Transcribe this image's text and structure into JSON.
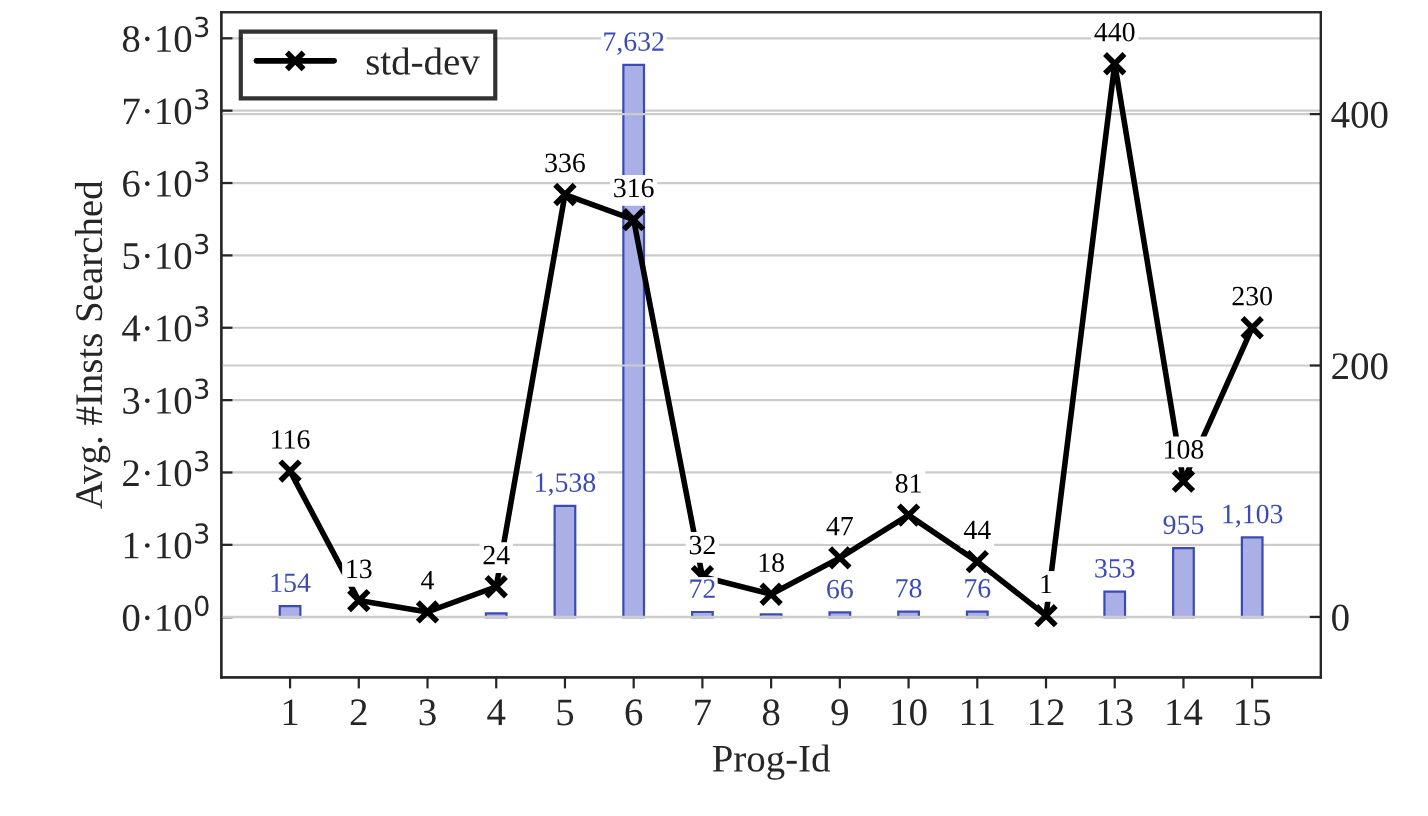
{
  "chart_data": {
    "type": "bar",
    "xlabel": "Prog-Id",
    "ylabel": "Avg. #Insts Searched",
    "categories": [
      "1",
      "2",
      "3",
      "4",
      "5",
      "6",
      "7",
      "8",
      "9",
      "10",
      "11",
      "12",
      "13",
      "14",
      "15"
    ],
    "series": [
      {
        "color": "#aab0e6",
        "values": [
          154,
          null,
          null,
          52,
          1538,
          7632,
          72,
          40,
          66,
          78,
          76,
          null,
          353,
          955,
          1103
        ],
        "value_labels": [
          "154",
          null,
          null,
          null,
          "1,538",
          "7,632",
          "72",
          null,
          "66",
          "78",
          "76",
          null,
          "353",
          "955",
          "1,103"
        ]
      },
      {
        "type": "line",
        "name": "std-dev",
        "axis": "y2",
        "color": "#000000",
        "marker": "cross",
        "values": [
          116,
          13,
          4,
          24,
          336,
          316,
          32,
          18,
          47,
          81,
          44,
          1,
          440,
          108,
          230
        ],
        "value_labels": [
          "116",
          "13",
          "4",
          "24",
          "336",
          "316",
          "32",
          "18",
          "47",
          "81",
          "44",
          "1",
          "440",
          "108",
          "230"
        ]
      }
    ],
    "ylim": [
      -830,
      8360
    ],
    "yticks": [
      {
        "value": 0,
        "label": "0·10$^{0}$"
      },
      {
        "value": 1000,
        "label": "1·10$^{3}$"
      },
      {
        "value": 2000,
        "label": "2·10$^{3}$"
      },
      {
        "value": 3000,
        "label": "3·10$^{3}$"
      },
      {
        "value": 4000,
        "label": "4·10$^{3}$"
      },
      {
        "value": 5000,
        "label": "5·10$^{3}$"
      },
      {
        "value": 6000,
        "label": "6·10$^{3}$"
      },
      {
        "value": 7000,
        "label": "7·10$^{3}$"
      },
      {
        "value": 8000,
        "label": "8·10$^{3}$"
      }
    ],
    "y2lim": [
      -48,
      481
    ],
    "y2ticks": [
      0,
      200,
      400
    ],
    "grid": "y",
    "legend": "top left"
  }
}
